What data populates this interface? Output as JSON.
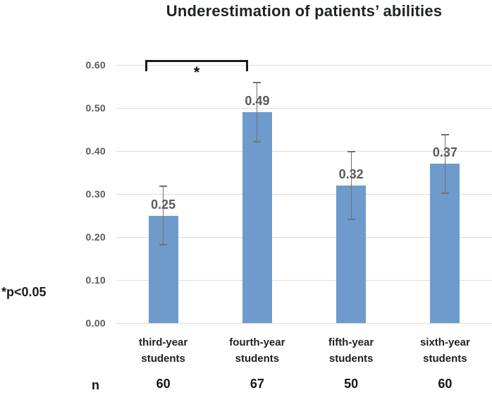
{
  "chart_data": {
    "type": "bar",
    "title": "Underestimation of patients’ abilities",
    "categories": [
      "third-year\nstudents",
      "fourth-year\nstudents",
      "fifth-year\nstudents",
      "sixth-year\nstudents"
    ],
    "values": [
      0.25,
      0.49,
      0.32,
      0.37
    ],
    "error_bars": {
      "upper": [
        0.32,
        0.56,
        0.4,
        0.44
      ],
      "lower": [
        0.18,
        0.42,
        0.24,
        0.3
      ]
    },
    "n_label": "n",
    "n_values": [
      "60",
      "67",
      "50",
      "60"
    ],
    "xlabel": "",
    "ylabel": "",
    "ylim": [
      0,
      0.6
    ],
    "yticks": [
      "0.00",
      "0.10",
      "0.20",
      "0.30",
      "0.40",
      "0.50",
      "0.60"
    ],
    "grid": true,
    "legend": "none",
    "bar_color": "#6F9BCC",
    "error_bar_color": "#75716C",
    "gridline_color": "#DCDCDC",
    "significance": {
      "pair": [
        0,
        1
      ],
      "label": "*",
      "note": "*p<0.05"
    }
  }
}
